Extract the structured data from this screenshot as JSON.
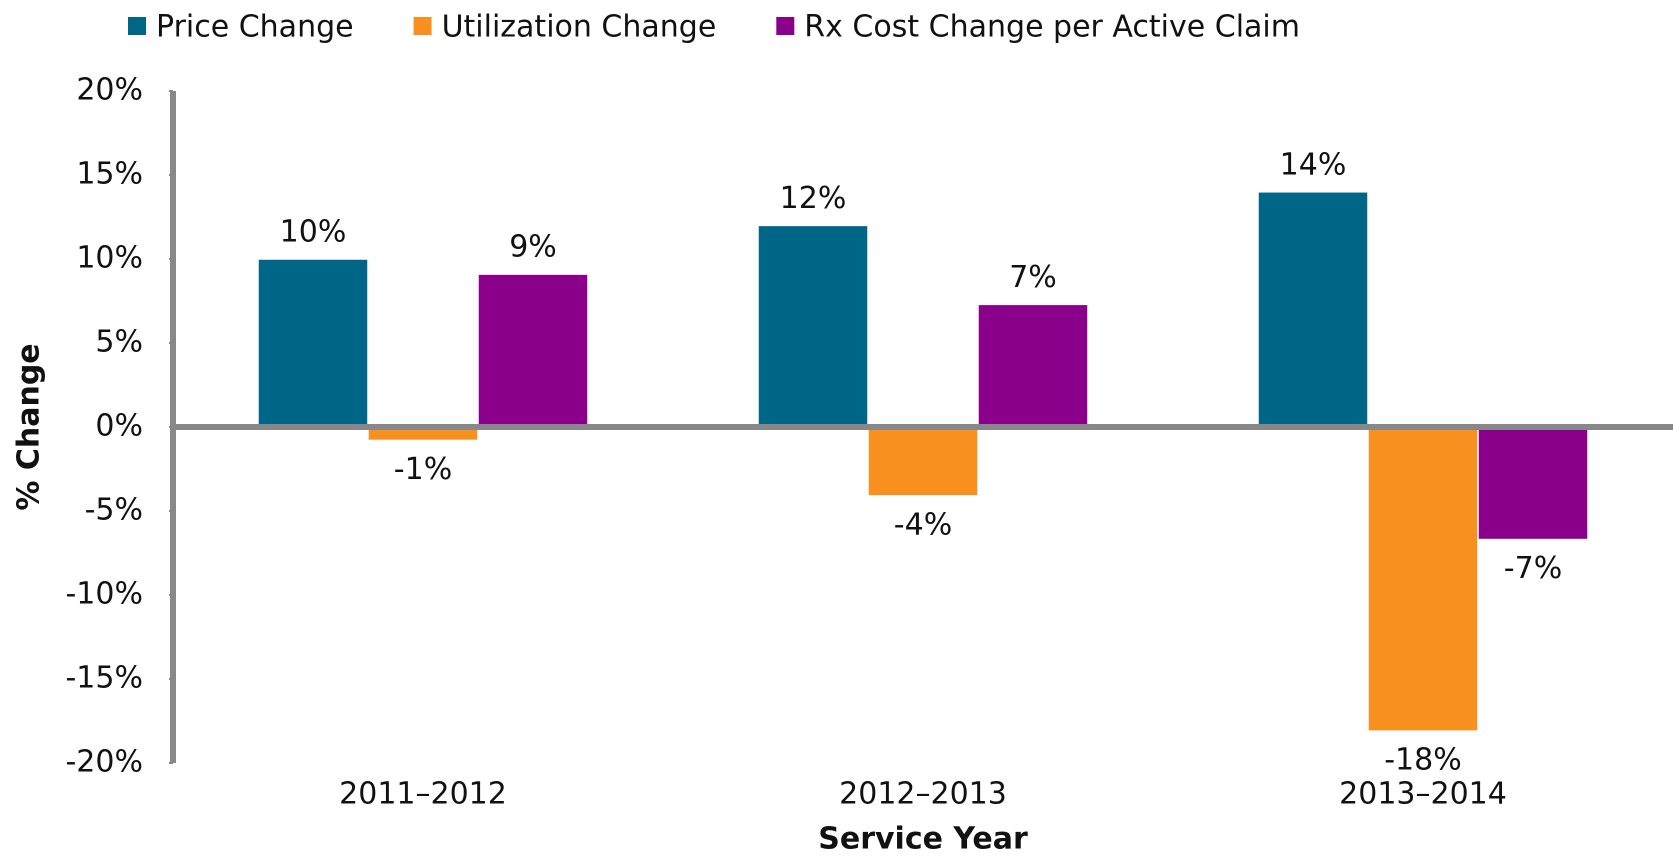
{
  "chart_data": {
    "type": "bar",
    "categories": [
      "2011–2012",
      "2012–2013",
      "2013–2014"
    ],
    "series": [
      {
        "name": "Price Change",
        "color": "#006688",
        "values": [
          10,
          12,
          14
        ],
        "value_labels": [
          "10%",
          "12%",
          "14%"
        ]
      },
      {
        "name": "Utilization Change",
        "color": "#f7901e",
        "values": [
          -0.8,
          -4.1,
          -18.1
        ],
        "value_labels": [
          "-1%",
          "-4%",
          "-18%"
        ]
      },
      {
        "name": "Rx Cost Change per Active Claim",
        "color": "#8b008b",
        "values": [
          9.1,
          7.3,
          -6.7
        ],
        "value_labels": [
          "9%",
          "7%",
          "-7%"
        ]
      }
    ],
    "ylim": [
      -20,
      20
    ],
    "yticks": [
      {
        "value": -20,
        "label": "-20%"
      },
      {
        "value": -15,
        "label": "-15%"
      },
      {
        "value": -10,
        "label": "-10%"
      },
      {
        "value": -5,
        "label": "-5%"
      },
      {
        "value": 0,
        "label": "0%"
      },
      {
        "value": 5,
        "label": "5%"
      },
      {
        "value": 10,
        "label": "10%"
      },
      {
        "value": 15,
        "label": "15%"
      },
      {
        "value": 20,
        "label": "20%"
      }
    ],
    "y_label": "% Change",
    "x_label": "Service Year",
    "legend": "top",
    "grid": false
  }
}
